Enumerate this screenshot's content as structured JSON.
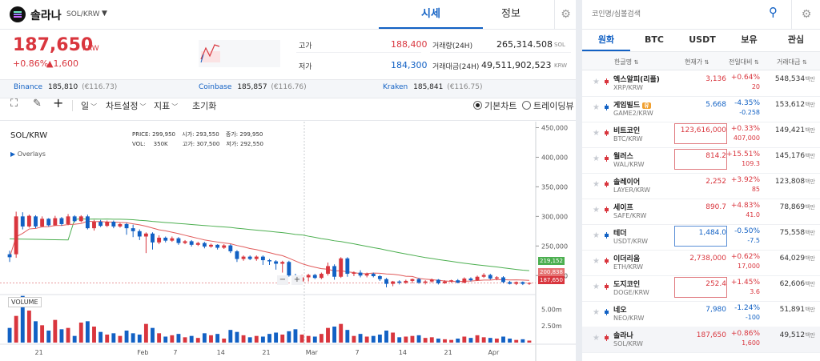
{
  "header": {
    "coin_name": "솔라나",
    "pair": "SOL/KRW",
    "tabs": [
      {
        "label": "시세",
        "active": true
      },
      {
        "label": "정보",
        "active": false
      }
    ],
    "price": "187,650",
    "price_unit": "KRW",
    "change_pct": "+0.86%",
    "change_abs": "▲1,600",
    "high_label": "고가",
    "high_value": "188,400",
    "low_label": "저가",
    "low_value": "184,300",
    "vol_label": "거래량(24H)",
    "vol_value": "265,314.508",
    "vol_unit": "SOL",
    "amt_label": "거래대금(24H)",
    "amt_value": "49,511,902,523",
    "amt_unit": "KRW"
  },
  "exchanges": [
    {
      "name": "Binance",
      "price": "185,810",
      "krw": "(€116.73)"
    },
    {
      "name": "Coinbase",
      "price": "185,857",
      "krw": "(€116.76)"
    },
    {
      "name": "Kraken",
      "price": "185,841",
      "krw": "(€116.75)"
    }
  ],
  "toolbar": {
    "interval": "일",
    "chart_settings": "차트설정",
    "indicator": "지표",
    "reset": "초기화",
    "basic_chart": "기본차트",
    "tradingview": "트레이딩뷰"
  },
  "chart_info": {
    "symbol": "SOL/KRW",
    "overlays": "Overlays",
    "price_label": "PRICE:",
    "price_val": "299,950",
    "open_label": "시가:",
    "open_val": "293,550",
    "close_label": "종가:",
    "close_val": "299,950",
    "vol_label": "VOL:",
    "vol_val": "350K",
    "high_label": "고가:",
    "high_val": "307,500",
    "low_label": "저가:",
    "low_val": "292,550",
    "volume_title": "VOLUME",
    "ma_long_tag": "219,152",
    "ma_short_tag": "200,838",
    "last_tag": "187,650",
    "zoom_minus": "−",
    "zoom_plus": "+"
  },
  "colors": {
    "up": "#d9363e",
    "down": "#1261c4",
    "accent": "#1261c4",
    "ma_short": "#e15b5b",
    "ma_long": "#4caf50"
  },
  "chart_data": {
    "type": "candlestick",
    "y_ticks": [
      "450,000",
      "400,000",
      "350,000",
      "300,000",
      "250,000",
      "200,000"
    ],
    "vol_ticks": [
      "5.00m",
      "2.50m"
    ],
    "x_ticks": [
      "21",
      "Feb",
      "7",
      "14",
      "21",
      "Mar",
      "7",
      "14",
      "21",
      "Apr"
    ],
    "ylim": [
      176000,
      452000
    ],
    "candles": [
      [
        0,
        236000,
        231000,
        223000,
        242000,
        2.2
      ],
      [
        1,
        236000,
        300000,
        230000,
        308000,
        4.0
      ],
      [
        2,
        300000,
        283000,
        278000,
        307000,
        7.0
      ],
      [
        3,
        283000,
        301000,
        281000,
        303000,
        4.8
      ],
      [
        4,
        300000,
        283000,
        280000,
        302000,
        3.2
      ],
      [
        5,
        283000,
        296000,
        282000,
        300000,
        2.6
      ],
      [
        6,
        296000,
        285000,
        283000,
        297000,
        1.8
      ],
      [
        7,
        285000,
        297000,
        284000,
        301000,
        3.4
      ],
      [
        8,
        297000,
        287000,
        284000,
        299000,
        2.0
      ],
      [
        9,
        287000,
        300000,
        285000,
        304000,
        2.2
      ],
      [
        10,
        300000,
        292000,
        290000,
        302000,
        1.0
      ],
      [
        11,
        292000,
        300000,
        290000,
        302000,
        3.0
      ],
      [
        12,
        300000,
        280000,
        278000,
        303000,
        3.2
      ],
      [
        13,
        280000,
        291000,
        276000,
        294000,
        2.4
      ],
      [
        14,
        291000,
        284000,
        282000,
        294000,
        1.6
      ],
      [
        15,
        284000,
        291000,
        282000,
        293000,
        1.2
      ],
      [
        16,
        291000,
        283000,
        280000,
        293000,
        1.4
      ],
      [
        17,
        283000,
        287000,
        281000,
        289000,
        1.0
      ],
      [
        18,
        287000,
        280000,
        269000,
        289000,
        1.8
      ],
      [
        19,
        280000,
        275000,
        265000,
        286000,
        1.4
      ],
      [
        20,
        275000,
        266000,
        260000,
        278000,
        1.2
      ],
      [
        21,
        266000,
        271000,
        238000,
        273000,
        2.8
      ],
      [
        22,
        271000,
        256000,
        244000,
        273000,
        2.2
      ],
      [
        23,
        256000,
        264000,
        253000,
        268000,
        1.4
      ],
      [
        24,
        264000,
        259000,
        256000,
        266000,
        0.9
      ],
      [
        25,
        259000,
        263000,
        257000,
        266000,
        1.1
      ],
      [
        26,
        263000,
        255000,
        252000,
        265000,
        1.3
      ],
      [
        27,
        255000,
        258000,
        253000,
        260000,
        0.8
      ],
      [
        28,
        258000,
        252000,
        249000,
        260000,
        1.0
      ],
      [
        29,
        252000,
        255000,
        250000,
        257000,
        0.7
      ],
      [
        30,
        255000,
        249000,
        246000,
        257000,
        1.4
      ],
      [
        31,
        249000,
        252000,
        247000,
        254000,
        1.1
      ],
      [
        32,
        252000,
        247000,
        244000,
        253000,
        1.3
      ],
      [
        33,
        247000,
        251000,
        245000,
        253000,
        0.6
      ],
      [
        34,
        251000,
        241000,
        238000,
        253000,
        1.9
      ],
      [
        35,
        241000,
        228000,
        223000,
        243000,
        1.6
      ],
      [
        36,
        228000,
        232000,
        225000,
        234000,
        1.1
      ],
      [
        37,
        232000,
        228000,
        226000,
        234000,
        0.8
      ],
      [
        38,
        228000,
        232000,
        225000,
        234000,
        1.0
      ],
      [
        39,
        232000,
        226000,
        218000,
        234000,
        0.9
      ],
      [
        40,
        226000,
        224000,
        218000,
        228000,
        1.3
      ],
      [
        41,
        224000,
        220000,
        210000,
        226000,
        1.5
      ],
      [
        42,
        220000,
        223000,
        205000,
        225000,
        1.2
      ],
      [
        43,
        223000,
        200000,
        198000,
        225000,
        1.7
      ],
      [
        44,
        200000,
        190000,
        186000,
        203000,
        2.0
      ],
      [
        45,
        190000,
        197000,
        185000,
        201000,
        1.2
      ],
      [
        46,
        197000,
        201000,
        190000,
        203000,
        1.0
      ],
      [
        47,
        201000,
        196000,
        194000,
        203000,
        0.9
      ],
      [
        48,
        196000,
        203000,
        194000,
        205000,
        1.3
      ],
      [
        49,
        203000,
        216000,
        200000,
        222000,
        2.2
      ],
      [
        50,
        216000,
        198000,
        193000,
        219000,
        2.4
      ],
      [
        51,
        198000,
        229000,
        196000,
        231000,
        2.8
      ],
      [
        52,
        229000,
        203000,
        198000,
        231000,
        1.9
      ],
      [
        53,
        203000,
        205000,
        199000,
        207000,
        1.0
      ],
      [
        54,
        205000,
        200000,
        197000,
        209000,
        1.3
      ],
      [
        55,
        200000,
        203000,
        197000,
        205000,
        0.9
      ],
      [
        56,
        203000,
        199000,
        197000,
        205000,
        1.0
      ],
      [
        57,
        199000,
        194000,
        191000,
        201000,
        1.2
      ],
      [
        58,
        194000,
        186000,
        180000,
        196000,
        1.8
      ],
      [
        59,
        186000,
        190000,
        182000,
        191000,
        1.5
      ],
      [
        60,
        190000,
        188000,
        185000,
        192000,
        0.8
      ],
      [
        61,
        188000,
        191000,
        186000,
        193000,
        0.9
      ],
      [
        62,
        191000,
        194000,
        187000,
        195000,
        1.0
      ],
      [
        63,
        194000,
        188000,
        186000,
        196000,
        1.1
      ],
      [
        64,
        188000,
        190000,
        185000,
        192000,
        0.7
      ],
      [
        65,
        190000,
        193000,
        188000,
        195000,
        0.8
      ],
      [
        66,
        193000,
        187000,
        185000,
        194000,
        0.6
      ],
      [
        67,
        187000,
        190000,
        186000,
        192000,
        0.5
      ],
      [
        68,
        190000,
        192000,
        188000,
        193000,
        0.4
      ],
      [
        69,
        192000,
        188000,
        187000,
        194000,
        0.6
      ],
      [
        70,
        188000,
        195000,
        187000,
        197000,
        0.9
      ],
      [
        71,
        195000,
        192000,
        190000,
        197000,
        0.7
      ],
      [
        72,
        192000,
        198000,
        191000,
        200000,
        1.1
      ],
      [
        73,
        198000,
        201000,
        196000,
        204000,
        0.8
      ],
      [
        74,
        201000,
        195000,
        193000,
        203000,
        0.7
      ],
      [
        75,
        195000,
        197000,
        192000,
        199000,
        0.6
      ],
      [
        76,
        197000,
        189000,
        187000,
        199000,
        0.9
      ],
      [
        77,
        189000,
        186000,
        185000,
        191000,
        0.6
      ],
      [
        78,
        186000,
        189000,
        184000,
        190000,
        0.4
      ],
      [
        79,
        189000,
        186000,
        184000,
        190000,
        0.5
      ],
      [
        80,
        186000,
        187650,
        184300,
        188400,
        0.3
      ]
    ]
  },
  "right": {
    "search_placeholder": "코인명/심볼검색",
    "tabs": [
      {
        "label": "원화",
        "active": true
      },
      {
        "label": "BTC",
        "active": false
      },
      {
        "label": "USDT",
        "active": false
      },
      {
        "label": "보유",
        "active": false
      },
      {
        "label": "관심",
        "active": false
      }
    ],
    "cols": {
      "name": "한글명",
      "price": "현재가",
      "change": "전일대비",
      "volume": "거래대금"
    },
    "vol_unit": "백만",
    "coins": [
      {
        "name": "엑스알피(리플)",
        "sym": "XRP/KRW",
        "price": "3,136",
        "pct": "+0.64%",
        "diff": "20",
        "vol": "548,534",
        "dir": "up",
        "box": ""
      },
      {
        "name": "게임빌드",
        "badge": "유",
        "sym": "GAME2/KRW",
        "price": "5.668",
        "pct": "-4.35%",
        "diff": "-0.258",
        "vol": "153,612",
        "dir": "down",
        "box": ""
      },
      {
        "name": "비트코인",
        "sym": "BTC/KRW",
        "price": "123,616,000",
        "pct": "+0.33%",
        "diff": "407,000",
        "vol": "149,421",
        "dir": "up",
        "box": "up"
      },
      {
        "name": "월러스",
        "sym": "WAL/KRW",
        "price": "814.2",
        "pct": "+15.51%",
        "diff": "109.3",
        "vol": "145,176",
        "dir": "up",
        "box": "up"
      },
      {
        "name": "솔레이어",
        "sym": "LAYER/KRW",
        "price": "2,252",
        "pct": "+3.92%",
        "diff": "85",
        "vol": "123,808",
        "dir": "up",
        "box": ""
      },
      {
        "name": "세이프",
        "sym": "SAFE/KRW",
        "price": "890.7",
        "pct": "+4.83%",
        "diff": "41.0",
        "vol": "78,869",
        "dir": "up",
        "box": ""
      },
      {
        "name": "테더",
        "sym": "USDT/KRW",
        "price": "1,484.0",
        "pct": "-0.50%",
        "diff": "-7.5",
        "vol": "75,558",
        "dir": "down",
        "box": "down"
      },
      {
        "name": "이더리움",
        "sym": "ETH/KRW",
        "price": "2,738,000",
        "pct": "+0.62%",
        "diff": "17,000",
        "vol": "64,029",
        "dir": "up",
        "box": ""
      },
      {
        "name": "도지코인",
        "sym": "DOGE/KRW",
        "price": "252.4",
        "pct": "+1.45%",
        "diff": "3.6",
        "vol": "62,606",
        "dir": "up",
        "box": "up"
      },
      {
        "name": "네오",
        "sym": "NEO/KRW",
        "price": "7,980",
        "pct": "-1.24%",
        "diff": "-100",
        "vol": "51,891",
        "dir": "down",
        "box": ""
      },
      {
        "name": "솔라나",
        "sym": "SOL/KRW",
        "price": "187,650",
        "pct": "+0.86%",
        "diff": "1,600",
        "vol": "49,512",
        "dir": "up",
        "box": "",
        "selected": true
      }
    ]
  }
}
